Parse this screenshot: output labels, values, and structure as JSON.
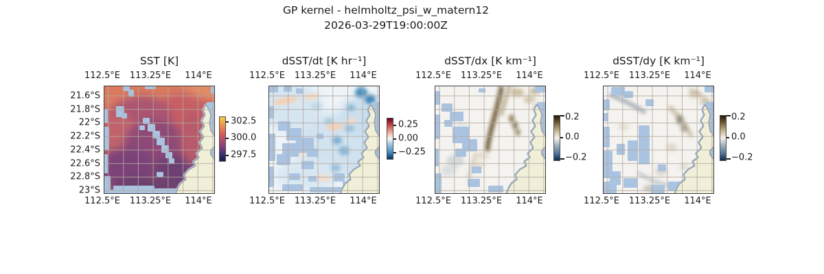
{
  "figure": {
    "title": "GP kernel - helmholtz_psi_w_matern12",
    "subtitle": "2026-03-29T19:00:00Z"
  },
  "axis": {
    "x_ticks": [
      "112.5°E",
      "113.25°E",
      "114°E"
    ],
    "y_ticks": [
      "21.6°S",
      "21.8°S",
      "22°S",
      "22.2°S",
      "22.4°S",
      "22.6°S",
      "22.8°S",
      "23°S"
    ]
  },
  "panels": [
    {
      "title": "SST [K]",
      "colorbar_ticks": [
        "302.5",
        "300.0",
        "297.5"
      ]
    },
    {
      "title": "dSST/dt [K hr⁻¹]",
      "colorbar_ticks": [
        "0.25",
        "0.00",
        "−0.25"
      ]
    },
    {
      "title": "dSST/dx [K km⁻¹]",
      "colorbar_ticks": [
        "0.2",
        "0.0",
        "−0.2"
      ]
    },
    {
      "title": "dSST/dy [K km⁻¹]",
      "colorbar_ticks": [
        "0.2",
        "0.0",
        "−0.2"
      ]
    }
  ],
  "colors": {
    "cloud_mask": "#a9c3e0",
    "land": "#f0efd8",
    "coast": "#8f8f8f",
    "grid": "#b3a9a2",
    "axes_border": "#3a3a3a",
    "text": "#1a1a1a",
    "sst_base": "#c05f66",
    "deriv_bg": "#f5f3ef",
    "dt_bg": "#eef4f8",
    "cb_gradients": [
      "linear-gradient(to bottom,#f2d13f 0%,#ef9251 18%,#d96356 36%,#b14d6c 52%,#7b3f79 70%,#3b3170 85%,#101c45 100%)",
      "linear-gradient(to bottom,#67001f 0%,#c94741 16%,#f3c3ad 38%,#f7f7f7 50%,#a8cfe4 62%,#3f8ec0 84%,#053061 100%)",
      "linear-gradient(to bottom,#1f1708 0%,#6e5a32 15%,#c9bc96 35%,#f4f2ec 50%,#a9b6c2 65%,#50739a 85%,#0d2a4a 100%)",
      "linear-gradient(to bottom,#1f1708 0%,#6e5a32 15%,#c9bc96 35%,#f4f2ec 50%,#a9b6c2 65%,#50739a 85%,#0d2a4a 100%)"
    ]
  },
  "chart_data": [
    {
      "type": "heatmap",
      "title": "SST [K]",
      "variable": "sea surface temperature",
      "units": "K",
      "x_ticks": [
        "112.5°E",
        "113.25°E",
        "114°E"
      ],
      "y_ticks": [
        "21.6°S",
        "21.8°S",
        "22°S",
        "22.2°S",
        "22.4°S",
        "22.6°S",
        "22.8°S",
        "23°S"
      ],
      "x_range_deg_east": [
        112.54,
        114.22
      ],
      "y_range_deg_south": [
        21.45,
        23.05
      ],
      "grid": true,
      "colorbar": {
        "tick_labels": [
          "302.5",
          "300.0",
          "297.5"
        ],
        "tick_values": [
          302.5,
          300.0,
          297.5
        ],
        "approx_range": [
          296.5,
          303.5
        ],
        "colormap": "thermal-like (yellow-orange-magenta-purple-navy)",
        "position": "right"
      },
      "field_summary": "Warm ~301-302 K (salmon/orange) in northwest and along a band following the northeast coast; cooler ~297-299 K (magenta/purple) over the central and southern interior; flat light-blue cloud-masked pixels scattered (left edge, central diagonal band, bottom strip); beige land (North West Cape / Exmouth Gulf, Australia) in lower right."
    },
    {
      "type": "heatmap",
      "title": "dSST/dt [K hr⁻¹]",
      "variable": "SST time derivative",
      "units": "K hr^-1",
      "x_ticks": [
        "112.5°E",
        "113.25°E",
        "114°E"
      ],
      "y_ticks": [
        "21.6°S",
        "21.8°S",
        "22°S",
        "22.2°S",
        "22.4°S",
        "22.6°S",
        "22.8°S",
        "23°S"
      ],
      "x_range_deg_east": [
        112.54,
        114.22
      ],
      "y_range_deg_south": [
        21.45,
        23.05
      ],
      "grid": true,
      "colorbar": {
        "tick_labels": [
          "0.25",
          "0.00",
          "−0.25"
        ],
        "tick_values": [
          0.25,
          0.0,
          -0.25
        ],
        "approx_range": [
          -0.35,
          0.35
        ],
        "colormap": "RdBu_r (red positive, blue negative)",
        "position": "right"
      },
      "field_summary": "Mostly weakly negative (pale blue) cooling; stronger negative (dark blue) spots in the northeast corner and along the coast; faint positive (peach) streaks in the northwest and center-east; flat cloud-mask blue patches over left-center and bottom."
    },
    {
      "type": "heatmap",
      "title": "dSST/dx [K km⁻¹]",
      "variable": "zonal SST gradient",
      "units": "K km^-1",
      "x_ticks": [
        "112.5°E",
        "113.25°E",
        "114°E"
      ],
      "y_ticks": [
        "21.6°S",
        "21.8°S",
        "22°S",
        "22.2°S",
        "22.4°S",
        "22.6°S",
        "22.8°S",
        "23°S"
      ],
      "x_range_deg_east": [
        112.54,
        114.22
      ],
      "y_range_deg_south": [
        21.45,
        23.05
      ],
      "grid": true,
      "colorbar": {
        "tick_labels": [
          "0.2",
          "0.0",
          "−0.2"
        ],
        "tick_values": [
          0.2,
          0.0,
          -0.2
        ],
        "approx_range": [
          -0.2,
          0.23
        ],
        "colormap": "dark-brown / tan / white / blue-gray / navy diverging",
        "position": "right"
      },
      "field_summary": "Near zero (off-white) almost everywhere; a pronounced positive brown streak running NNE-SSW just west of the cape (SST front); lighter tan smudges in the upper right; faint gray-blue smudges lower left; cloud-mask blue patches on left edge and center-left."
    },
    {
      "type": "heatmap",
      "title": "dSST/dy [K km⁻¹]",
      "variable": "meridional SST gradient",
      "units": "K km^-1",
      "x_ticks": [
        "112.5°E",
        "113.25°E",
        "114°E"
      ],
      "y_ticks": [
        "21.6°S",
        "21.8°S",
        "22°S",
        "22.2°S",
        "22.4°S",
        "22.6°S",
        "22.8°S",
        "23°S"
      ],
      "x_range_deg_east": [
        112.54,
        114.22
      ],
      "y_range_deg_south": [
        21.45,
        23.05
      ],
      "grid": true,
      "colorbar": {
        "tick_labels": [
          "0.2",
          "0.0",
          "−0.2"
        ],
        "tick_values": [
          0.2,
          0.0,
          -0.2
        ],
        "approx_range": [
          -0.22,
          0.22
        ],
        "colormap": "dark-brown / tan / white / blue-gray / navy diverging",
        "position": "right"
      },
      "field_summary": "Near zero (off-white) background; gray-blue negative streak in upper left; weak tan/brown positive dashes paralleling the coast northeast of center; gray smudge along bottom-center; extensive flat cloud-mask blue patches (top-left, center-left column, bottom band)."
    }
  ]
}
